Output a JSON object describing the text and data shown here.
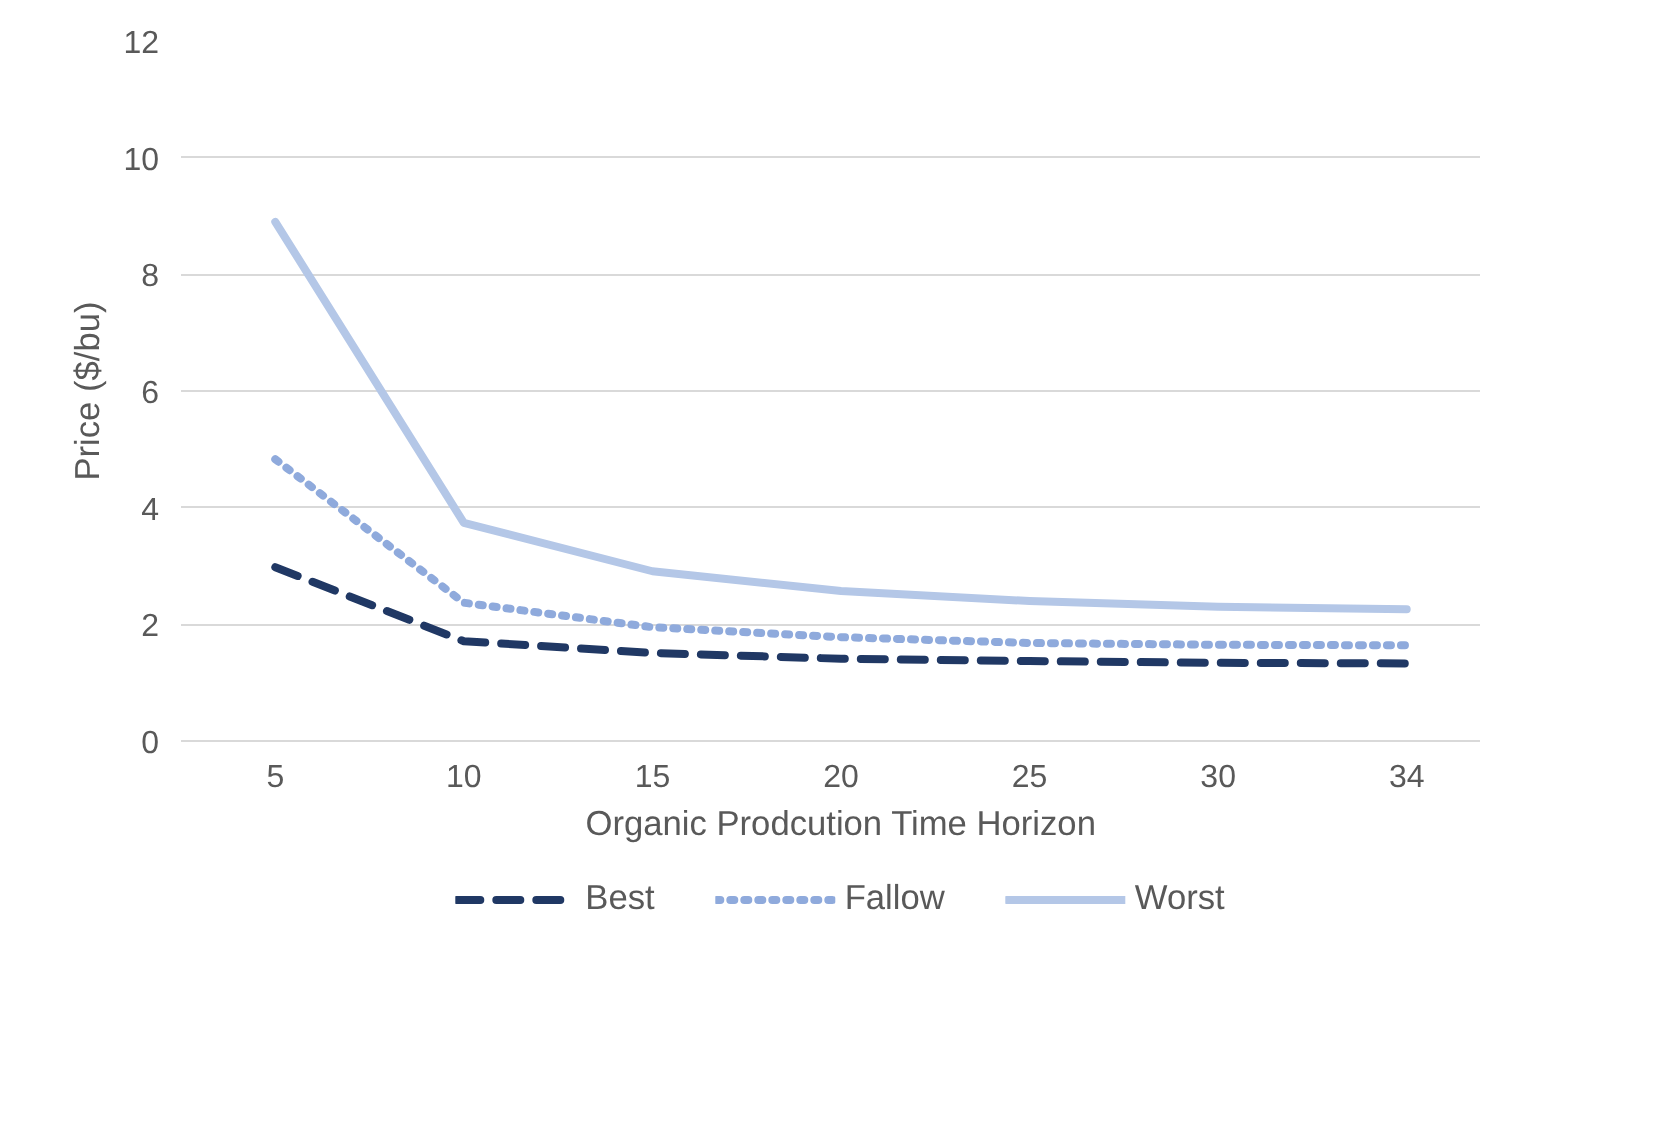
{
  "chart_data": {
    "type": "line",
    "xlabel": "Organic Prodcution Time Horizon",
    "ylabel": "Price ($/bu)",
    "categories": [
      "5",
      "10",
      "15",
      "20",
      "25",
      "30",
      "34"
    ],
    "series": [
      {
        "name": "Best",
        "color": "#203864",
        "line_style": "dashed",
        "values": [
          2.98,
          1.71,
          1.51,
          1.41,
          1.37,
          1.34,
          1.33
        ]
      },
      {
        "name": "Fallow",
        "color": "#8faadc",
        "line_style": "dotted",
        "values": [
          4.83,
          2.37,
          1.95,
          1.78,
          1.68,
          1.65,
          1.64
        ]
      },
      {
        "name": "Worst",
        "color": "#b4c7e7",
        "line_style": "solid",
        "values": [
          8.9,
          3.74,
          2.91,
          2.57,
          2.4,
          2.3,
          2.26
        ]
      }
    ],
    "ylim": [
      0,
      12
    ],
    "yticks": [
      0,
      2,
      4,
      6,
      8,
      10,
      12
    ],
    "grid": "y",
    "legend": "bottom",
    "marker": "none"
  }
}
